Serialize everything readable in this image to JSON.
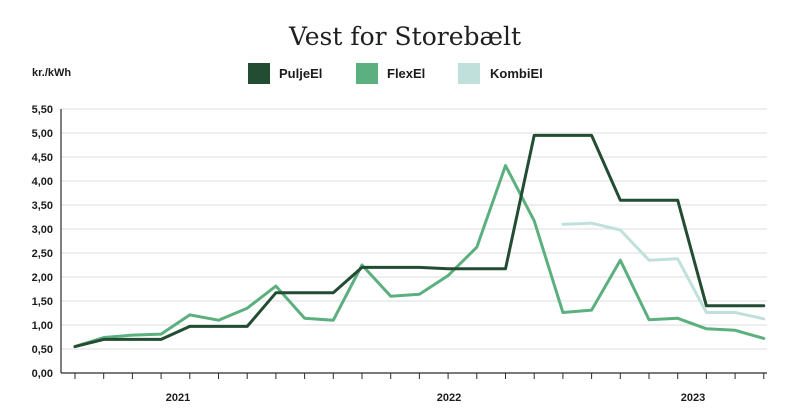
{
  "chart_data": {
    "type": "line",
    "title": "Vest for Storebælt",
    "ylabel": "kr./kWh",
    "ylim": [
      0,
      5.5
    ],
    "grid": true,
    "legend_position": "top",
    "y_ticks": [
      "0,00",
      "0,50",
      "1,00",
      "1,50",
      "2,00",
      "2,50",
      "3,00",
      "3,50",
      "4,00",
      "4,50",
      "5,00",
      "5,50"
    ],
    "x_year_labels": [
      "2021",
      "2022",
      "2023"
    ],
    "series": [
      {
        "name": "PuljeEl",
        "color": "#234d33",
        "values": [
          0.55,
          0.7,
          0.7,
          0.7,
          0.97,
          0.97,
          0.97,
          1.67,
          1.67,
          1.67,
          2.2,
          2.2,
          2.2,
          2.17,
          2.17,
          2.17,
          4.95,
          4.95,
          4.95,
          3.6,
          3.6,
          3.6,
          1.4,
          1.4,
          1.4
        ]
      },
      {
        "name": "FlexEl",
        "color": "#5cb07f",
        "values": [
          0.55,
          0.74,
          0.79,
          0.81,
          1.21,
          1.1,
          1.35,
          1.81,
          1.14,
          1.1,
          2.25,
          1.6,
          1.64,
          2.03,
          2.62,
          4.32,
          3.17,
          1.26,
          1.31,
          2.35,
          1.11,
          1.14,
          0.92,
          0.89,
          0.72
        ]
      },
      {
        "name": "KombiEl",
        "color": "#c0e0dc",
        "values": [
          null,
          null,
          null,
          null,
          null,
          null,
          null,
          null,
          null,
          null,
          null,
          null,
          null,
          null,
          null,
          null,
          null,
          3.1,
          3.12,
          2.98,
          2.35,
          2.38,
          1.26,
          1.26,
          1.13
        ]
      }
    ]
  }
}
